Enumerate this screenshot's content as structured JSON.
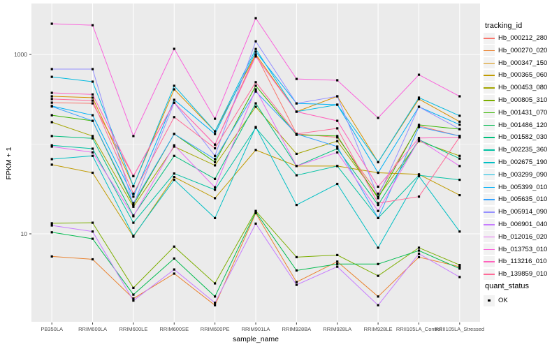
{
  "chart_data": {
    "type": "line",
    "xlabel": "sample_name",
    "ylabel": "FPKM + 1",
    "y_scale": "log10",
    "y_ticks": [
      1000,
      10
    ],
    "y_minor_gridlines": [
      100
    ],
    "legend_title": "tracking_id",
    "point_legend_title": "quant_status",
    "point_legend_label": "OK",
    "legend_position": "right",
    "categories": [
      "PB350LA",
      "RRIM600LA",
      "RRIM600LE",
      "RRIM600SE",
      "RRIM600PE",
      "RRIM901LA",
      "RRIM928BA",
      "RRIM928LA",
      "RRIM928LE",
      "RRII105LA_Control",
      "RRII105LA_Stressed"
    ],
    "series": [
      {
        "name": "Hb_000212_280",
        "color": "#F8766D",
        "values": [
          290,
          285,
          44,
          290,
          99,
          1000,
          130,
          119,
          28,
          160,
          123
        ]
      },
      {
        "name": "Hb_000270_020",
        "color": "#EA8331",
        "values": [
          5.6,
          5.2,
          1.9,
          3.6,
          1.6,
          17,
          2.9,
          4.9,
          2.0,
          5.5,
          4.3
        ]
      },
      {
        "name": "Hb_000347_150",
        "color": "#D89000",
        "values": [
          341,
          330,
          34,
          408,
          139,
          1000,
          230,
          341,
          63,
          318,
          178
        ]
      },
      {
        "name": "Hb_000365_060",
        "color": "#C09B00",
        "values": [
          59,
          48,
          9.3,
          43,
          25,
          86,
          57,
          57,
          48,
          46,
          27
        ]
      },
      {
        "name": "Hb_000453_080",
        "color": "#A3A500",
        "values": [
          176,
          123,
          20,
          94,
          58,
          261,
          78,
          108,
          26,
          108,
          74
        ]
      },
      {
        "name": "Hb_000805_310",
        "color": "#7CAE00",
        "values": [
          13.1,
          13.3,
          2.5,
          7.2,
          2.8,
          18,
          5.5,
          5.8,
          3.4,
          7.0,
          4.5
        ]
      },
      {
        "name": "Hb_001431_070",
        "color": "#39B600",
        "values": [
          210,
          182,
          21,
          130,
          63,
          447,
          127,
          123,
          25,
          164,
          147
        ]
      },
      {
        "name": "Hb_001486_120",
        "color": "#00BB4E",
        "values": [
          10.4,
          8.8,
          2.1,
          5.3,
          2.0,
          17.5,
          3.9,
          4.6,
          4.6,
          6.5,
          4.1
        ]
      },
      {
        "name": "Hb_001582_030",
        "color": "#00BF7D",
        "values": [
          123,
          116,
          16,
          74,
          41,
          285,
          57,
          89,
          21,
          112,
          69
        ]
      },
      {
        "name": "Hb_002235_360",
        "color": "#00C1A3",
        "values": [
          97,
          89,
          13.3,
          47,
          31,
          152,
          45,
          57,
          15,
          45,
          40
        ]
      },
      {
        "name": "Hb_002675_190",
        "color": "#00BFC4",
        "values": [
          68,
          74,
          9.5,
          40,
          15,
          155,
          21,
          36,
          7.0,
          44,
          10.6
        ]
      },
      {
        "name": "Hb_003299_090",
        "color": "#00BAE0",
        "values": [
          563,
          497,
          34,
          447,
          139,
          1150,
          230,
          275,
          63,
          330,
          207
        ]
      },
      {
        "name": "Hb_005399_010",
        "color": "#00B0F6",
        "values": [
          266,
          210,
          26,
          312,
          130,
          1074,
          285,
          275,
          48,
          261,
          165
        ]
      },
      {
        "name": "Hb_005635_010",
        "color": "#35A2FF",
        "values": [
          263,
          182,
          22,
          130,
          68,
          386,
          130,
          94,
          15,
          155,
          123
        ]
      },
      {
        "name": "Hb_005914_090",
        "color": "#9590FF",
        "values": [
          687,
          687,
          21,
          290,
          74,
          1400,
          285,
          341,
          26,
          261,
          147
        ]
      },
      {
        "name": "Hb_006901_040",
        "color": "#C77CFF",
        "values": [
          12.4,
          10.6,
          1.8,
          4.0,
          1.7,
          13,
          2.7,
          4.3,
          1.6,
          6.0,
          3.3
        ]
      },
      {
        "name": "Hb_012016_020",
        "color": "#E76BF3",
        "values": [
          94,
          81,
          15.7,
          97,
          33,
          408,
          57,
          81,
          18,
          112,
          57
        ]
      },
      {
        "name": "Hb_013753_010",
        "color": "#FA62DB",
        "values": [
          2200,
          2120,
          123,
          1155,
          192,
          2540,
          533,
          515,
          196,
          594,
          341
        ]
      },
      {
        "name": "Hb_113216_010",
        "color": "#FF62BC",
        "values": [
          373,
          358,
          44,
          290,
          99,
          950,
          230,
          182,
          33.5,
          117,
          119
        ]
      },
      {
        "name": "Hb_139859_010",
        "color": "#FF6A98",
        "values": [
          318,
          306,
          28,
          200,
          90,
          490,
          130,
          150,
          22,
          26,
          120
        ]
      }
    ],
    "colors": {
      "panel_background": "#EBEBEB",
      "gridline": "#FFFFFF",
      "tick_label": "#4D4D4D",
      "tick_mark": "#333333",
      "point": "#000000",
      "legend_key_background": "#F2F2F2"
    }
  }
}
